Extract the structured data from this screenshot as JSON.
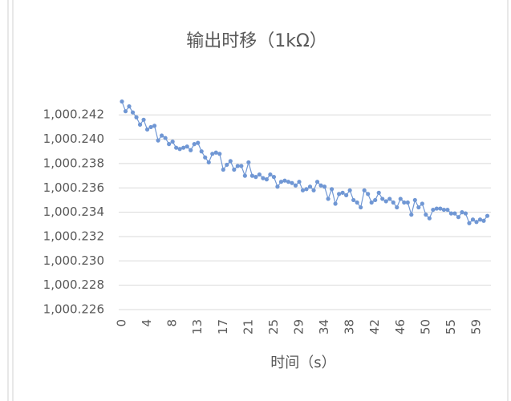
{
  "chart_data": {
    "type": "line",
    "title": "输出时移（1kΩ）",
    "x_label": "时间（s）",
    "categories": [
      0,
      null,
      null,
      null,
      null,
      null,
      null,
      4,
      null,
      null,
      null,
      null,
      null,
      null,
      8,
      null,
      null,
      null,
      null,
      null,
      null,
      13,
      null,
      null,
      null,
      null,
      null,
      null,
      17,
      null,
      null,
      null,
      null,
      null,
      null,
      21,
      null,
      null,
      null,
      null,
      null,
      null,
      25,
      null,
      null,
      null,
      null,
      null,
      null,
      29,
      null,
      null,
      null,
      null,
      null,
      null,
      34,
      null,
      null,
      null,
      null,
      null,
      null,
      38,
      null,
      null,
      null,
      null,
      null,
      null,
      42,
      null,
      null,
      null,
      null,
      null,
      null,
      46,
      null,
      null,
      null,
      null,
      null,
      null,
      50,
      null,
      null,
      null,
      null,
      null,
      null,
      55,
      null,
      null,
      null,
      null,
      null,
      null,
      59,
      null,
      null,
      null
    ],
    "series": [
      {
        "name": "输出时移",
        "color": "#7097d4",
        "values": [
          1000.2431,
          1000.2423,
          1000.2427,
          1000.2422,
          1000.2418,
          1000.2412,
          1000.2416,
          1000.2408,
          1000.241,
          1000.2411,
          1000.2399,
          1000.2403,
          1000.2401,
          1000.2396,
          1000.2398,
          1000.2393,
          1000.2392,
          1000.2393,
          1000.2394,
          1000.2391,
          1000.2396,
          1000.2397,
          1000.239,
          1000.2385,
          1000.2381,
          1000.2388,
          1000.2389,
          1000.2388,
          1000.2375,
          1000.2379,
          1000.2382,
          1000.2375,
          1000.2378,
          1000.2378,
          1000.237,
          1000.2381,
          1000.237,
          1000.2369,
          1000.2371,
          1000.2368,
          1000.2367,
          1000.2371,
          1000.2369,
          1000.2361,
          1000.2365,
          1000.2366,
          1000.2365,
          1000.2364,
          1000.2362,
          1000.2365,
          1000.2358,
          1000.2359,
          1000.2361,
          1000.2358,
          1000.2365,
          1000.2362,
          1000.2361,
          1000.2351,
          1000.2359,
          1000.2347,
          1000.2355,
          1000.2356,
          1000.2354,
          1000.2358,
          1000.235,
          1000.2348,
          1000.2344,
          1000.2358,
          1000.2355,
          1000.2348,
          1000.235,
          1000.2356,
          1000.2351,
          1000.2349,
          1000.2351,
          1000.2348,
          1000.2344,
          1000.2351,
          1000.2348,
          1000.2348,
          1000.2338,
          1000.235,
          1000.2344,
          1000.2347,
          1000.2338,
          1000.2335,
          1000.2342,
          1000.2343,
          1000.2343,
          1000.2342,
          1000.2342,
          1000.2339,
          1000.2339,
          1000.2336,
          1000.234,
          1000.2339,
          1000.2331,
          1000.2334,
          1000.2332,
          1000.2334,
          1000.2333,
          1000.2337
        ]
      }
    ],
    "ylim": [
      1000.226,
      1000.2434
    ],
    "yticks": [
      {
        "value": 1000.226,
        "label": "1,000.226"
      },
      {
        "value": 1000.228,
        "label": "1,000.228"
      },
      {
        "value": 1000.23,
        "label": "1,000.230"
      },
      {
        "value": 1000.232,
        "label": "1,000.232"
      },
      {
        "value": 1000.234,
        "label": "1,000.234"
      },
      {
        "value": 1000.236,
        "label": "1,000.236"
      },
      {
        "value": 1000.238,
        "label": "1,000.238"
      },
      {
        "value": 1000.24,
        "label": "1,000.240"
      },
      {
        "value": 1000.242,
        "label": "1,000.242"
      }
    ],
    "grid": true
  }
}
